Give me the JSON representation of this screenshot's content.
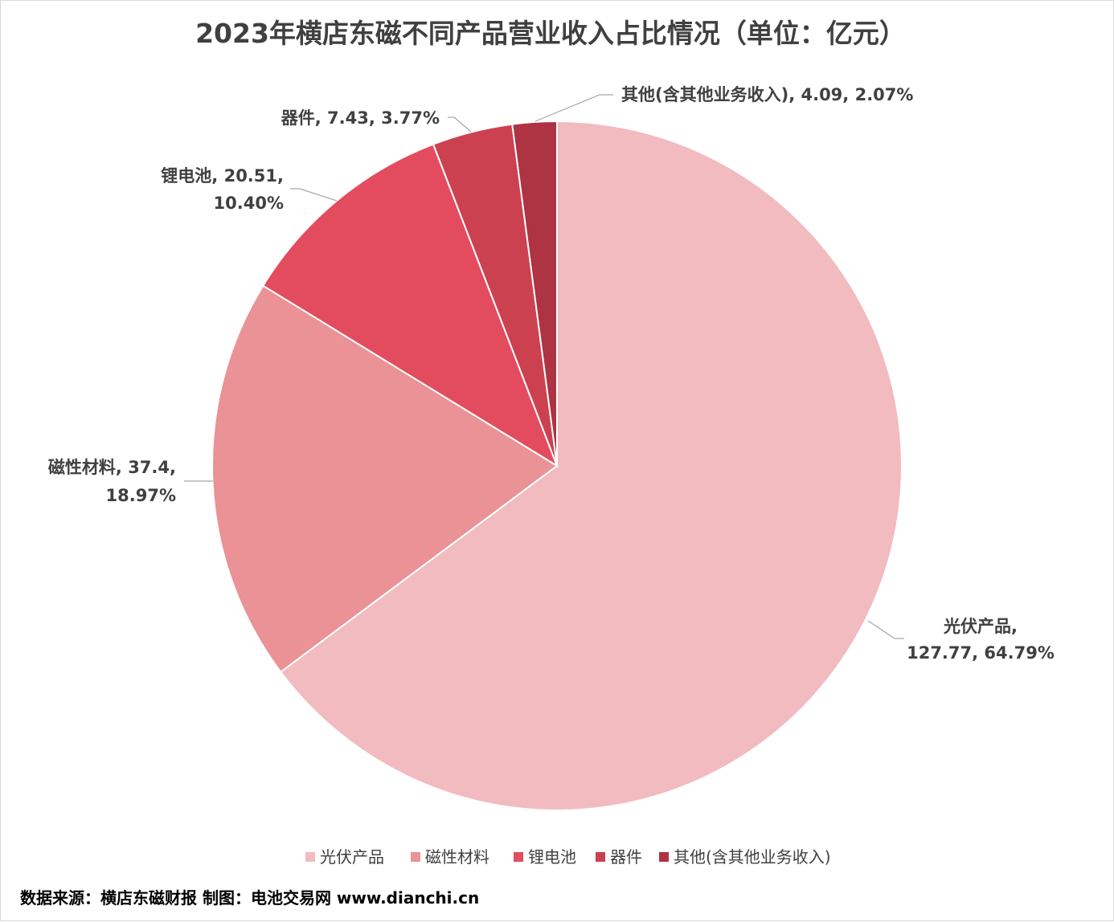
{
  "chart_data": {
    "type": "pie",
    "title": "2023年横店东磁不同产品营业收入占比情况（单位：亿元）",
    "slices": [
      {
        "name": "光伏产品",
        "value": 127.77,
        "percent": "64.79%",
        "color": "#F2BBBF",
        "label_lines": [
          "光伏产品,",
          "127.77, 64.79%"
        ]
      },
      {
        "name": "磁性材料",
        "value": 37.4,
        "percent": "18.97%",
        "color": "#EA9296",
        "label_lines": [
          "磁性材料, 37.4,",
          "18.97%"
        ]
      },
      {
        "name": "锂电池",
        "value": 20.51,
        "percent": "10.40%",
        "color": "#E34C5E",
        "label_lines": [
          "锂电池, 20.51,",
          "10.40%"
        ]
      },
      {
        "name": "器件",
        "value": 7.43,
        "percent": "3.77%",
        "color": "#CC4150",
        "label_lines": [
          "器件, 7.43, 3.77%"
        ]
      },
      {
        "name": "其他(含其他业务收入)",
        "value": 4.09,
        "percent": "2.07%",
        "color": "#AE3343",
        "label_lines": [
          "其他(含其他业务收入), 4.09, 2.07%"
        ]
      }
    ],
    "legend": {
      "placement": "bottom",
      "items": [
        "光伏产品",
        "磁性材料",
        "锂电池",
        "器件",
        "其他(含其他业务收入)"
      ]
    },
    "source": "数据来源：横店东磁财报  制图：电池交易网 www.dianchi.cn"
  }
}
